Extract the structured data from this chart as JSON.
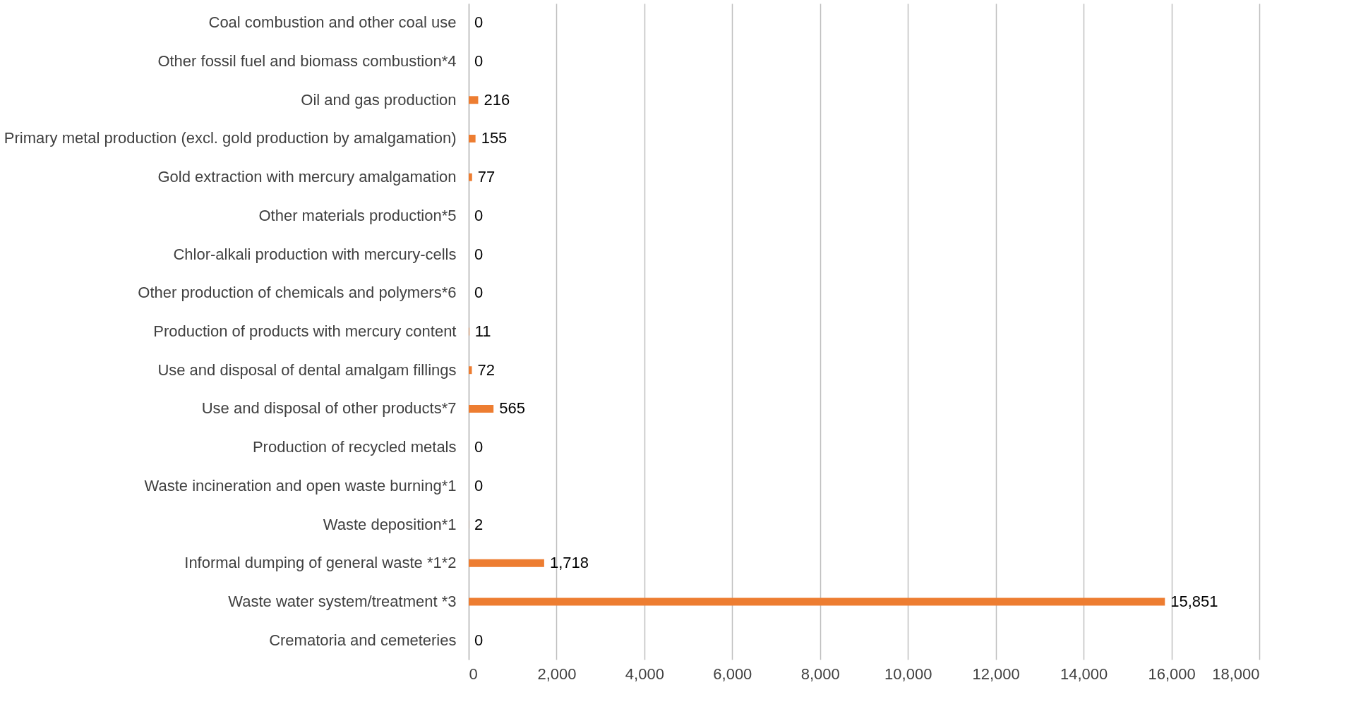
{
  "chart_data": {
    "type": "bar",
    "orientation": "horizontal",
    "categories": [
      "Coal combustion and other coal use",
      "Other fossil fuel and biomass combustion*4",
      "Oil and gas production",
      "Primary metal production (excl. gold production by amalgamation)",
      "Gold extraction with mercury amalgamation",
      "Other materials production*5",
      "Chlor-alkali production with mercury-cells",
      "Other production of chemicals and polymers*6",
      "Production of products with mercury content",
      "Use and disposal of dental amalgam fillings",
      "Use and disposal of other products*7",
      "Production of recycled metals",
      "Waste incineration and open waste burning*1",
      "Waste deposition*1",
      "Informal dumping of general waste *1*2",
      "Waste water system/treatment *3",
      "Crematoria and cemeteries"
    ],
    "values": [
      0,
      0,
      216,
      155,
      77,
      0,
      0,
      0,
      11,
      72,
      565,
      0,
      0,
      2,
      1718,
      15851,
      0
    ],
    "color": "#ed7d31",
    "xlim": [
      0,
      18000
    ],
    "xticks": [
      0,
      {
        "value": 2000,
        "label": "2,000"
      },
      {
        "value": 4000,
        "label": "4,000"
      },
      {
        "value": 6000,
        "label": "6,000"
      },
      {
        "value": 8000,
        "label": "8,000"
      },
      {
        "value": 10000,
        "label": "10,000"
      },
      {
        "value": 12000,
        "label": "12,000"
      },
      {
        "value": 14000,
        "label": "14,000"
      },
      {
        "value": 16000,
        "label": "16,000"
      },
      {
        "value": 18000,
        "label": "18,000"
      }
    ],
    "value_labels": [
      "0",
      "0",
      "216",
      "155",
      "77",
      "0",
      "0",
      "0",
      "11",
      "72",
      "565",
      "0",
      "0",
      "2",
      "1,718",
      "15,851",
      "0"
    ],
    "grid": "x"
  }
}
